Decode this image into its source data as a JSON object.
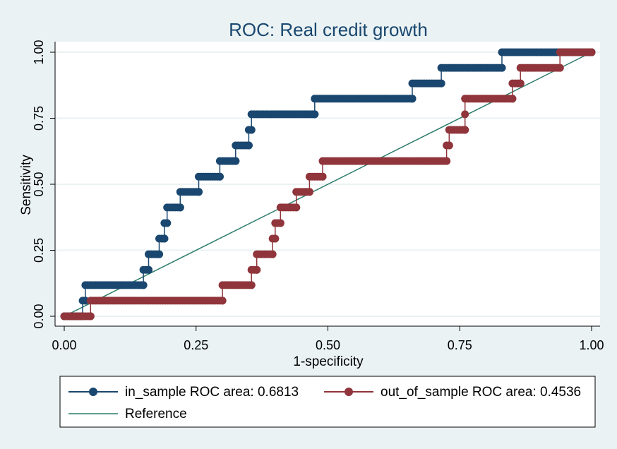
{
  "chart_data": {
    "type": "line",
    "title": "ROC: Real credit growth",
    "xlabel": "1-specificity",
    "ylabel": "Sensitivity",
    "xlim": [
      0,
      1
    ],
    "ylim": [
      0,
      1
    ],
    "x_ticks": [
      "0.00",
      "0.25",
      "0.50",
      "0.75",
      "1.00"
    ],
    "y_ticks": [
      "0.00",
      "0.25",
      "0.50",
      "0.75",
      "1.00"
    ],
    "grid": true,
    "legend_position": "bottom",
    "colors": {
      "background": "#eaf2f3",
      "plot_area": "#ffffff",
      "in_sample": "#1a476f",
      "out_of_sample": "#90353b",
      "reference": "#2e7d6b"
    },
    "series": [
      {
        "name": "in_sample ROC area: 0.6813",
        "points": [
          [
            0.0,
            0.0
          ],
          [
            0.035,
            0.0
          ],
          [
            0.035,
            0.059
          ],
          [
            0.04,
            0.059
          ],
          [
            0.04,
            0.118
          ],
          [
            0.15,
            0.118
          ],
          [
            0.15,
            0.176
          ],
          [
            0.16,
            0.176
          ],
          [
            0.16,
            0.235
          ],
          [
            0.18,
            0.235
          ],
          [
            0.18,
            0.294
          ],
          [
            0.19,
            0.294
          ],
          [
            0.19,
            0.353
          ],
          [
            0.195,
            0.353
          ],
          [
            0.195,
            0.412
          ],
          [
            0.22,
            0.412
          ],
          [
            0.22,
            0.471
          ],
          [
            0.255,
            0.471
          ],
          [
            0.255,
            0.529
          ],
          [
            0.295,
            0.529
          ],
          [
            0.295,
            0.588
          ],
          [
            0.325,
            0.588
          ],
          [
            0.325,
            0.647
          ],
          [
            0.35,
            0.647
          ],
          [
            0.35,
            0.706
          ],
          [
            0.355,
            0.706
          ],
          [
            0.355,
            0.765
          ],
          [
            0.475,
            0.765
          ],
          [
            0.475,
            0.824
          ],
          [
            0.66,
            0.824
          ],
          [
            0.66,
            0.882
          ],
          [
            0.715,
            0.882
          ],
          [
            0.715,
            0.941
          ],
          [
            0.83,
            0.941
          ],
          [
            0.83,
            1.0
          ],
          [
            1.0,
            1.0
          ]
        ]
      },
      {
        "name": "out_of_sample ROC area: 0.4536",
        "points": [
          [
            0.0,
            0.0
          ],
          [
            0.05,
            0.0
          ],
          [
            0.05,
            0.059
          ],
          [
            0.3,
            0.059
          ],
          [
            0.3,
            0.118
          ],
          [
            0.355,
            0.118
          ],
          [
            0.355,
            0.176
          ],
          [
            0.365,
            0.176
          ],
          [
            0.365,
            0.235
          ],
          [
            0.395,
            0.235
          ],
          [
            0.395,
            0.294
          ],
          [
            0.4,
            0.294
          ],
          [
            0.4,
            0.353
          ],
          [
            0.41,
            0.353
          ],
          [
            0.41,
            0.412
          ],
          [
            0.44,
            0.412
          ],
          [
            0.44,
            0.471
          ],
          [
            0.465,
            0.471
          ],
          [
            0.465,
            0.529
          ],
          [
            0.49,
            0.529
          ],
          [
            0.49,
            0.588
          ],
          [
            0.725,
            0.588
          ],
          [
            0.725,
            0.647
          ],
          [
            0.73,
            0.647
          ],
          [
            0.73,
            0.706
          ],
          [
            0.76,
            0.706
          ],
          [
            0.76,
            0.765
          ],
          [
            0.76,
            0.824
          ],
          [
            0.85,
            0.824
          ],
          [
            0.85,
            0.882
          ],
          [
            0.865,
            0.882
          ],
          [
            0.865,
            0.941
          ],
          [
            0.94,
            0.941
          ],
          [
            0.94,
            1.0
          ],
          [
            1.0,
            1.0
          ]
        ]
      }
    ],
    "reference": {
      "name": "Reference",
      "points": [
        [
          0,
          0
        ],
        [
          1,
          1
        ]
      ]
    }
  }
}
